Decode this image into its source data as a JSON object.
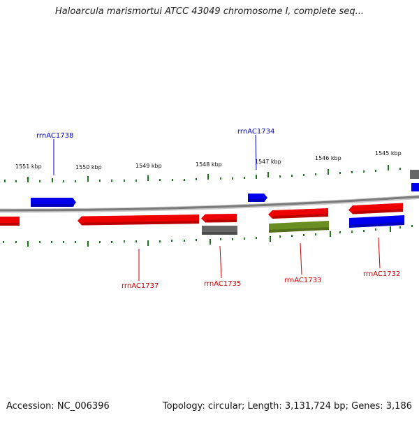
{
  "title": "Haloarcula marismortui ATCC 43049 chromosome I, complete seq...",
  "accession_text": "Accession: NC_006396",
  "summary_text": "Topology: circular; Length: 3,131,724 bp; Genes: 3,186",
  "colors": {
    "forward_gene": "#0000ee",
    "reverse_gene": "#ee0000",
    "grey_feature": "#555555",
    "green_feature": "#6b8e23",
    "tick": "#1a7a1a",
    "backbone": "#888888",
    "forward_label": "#0000cc",
    "reverse_label": "#cc0000"
  },
  "scale": {
    "unit": "kbp",
    "labels": [
      "1551 kbp",
      "1550 kbp",
      "1549 kbp",
      "1548 kbp",
      "1547 kbp",
      "1546 kbp",
      "1545 kbp"
    ]
  },
  "labels": {
    "rrnAC1738": "rrnAC1738",
    "rrnAC1734": "rrnAC1734",
    "rrnAC1737": "rrnAC1737",
    "rrnAC1735": "rrnAC1735",
    "rrnAC1733": "rrnAC1733",
    "rrnAC1732": "rrnAC1732"
  }
}
